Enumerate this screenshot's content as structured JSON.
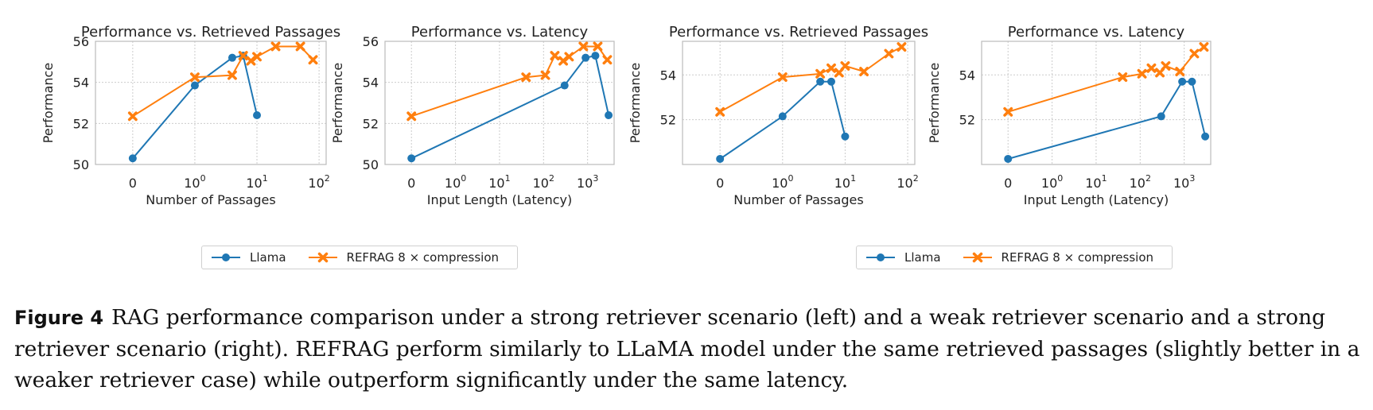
{
  "colors": {
    "llama": "#1f77b4",
    "refrag": "#ff7f0e",
    "grid": "#cccccc",
    "axis": "#bbbbbb",
    "text": "#222222"
  },
  "chart_data": [
    {
      "type": "line",
      "title": "Performance vs. Retrieved Passages",
      "xlabel": "Number of Passages",
      "ylabel": "Performance",
      "xscale": "symlog",
      "xlim": [
        -0.6,
        130
      ],
      "ylim": [
        50,
        56
      ],
      "xticks": [
        {
          "v": 0,
          "label": "0"
        },
        {
          "v": 1,
          "base": "10",
          "exp": "0"
        },
        {
          "v": 10,
          "base": "10",
          "exp": "1"
        },
        {
          "v": 100,
          "base": "10",
          "exp": "2"
        }
      ],
      "yticks": [
        {
          "v": 50,
          "label": "50"
        },
        {
          "v": 52,
          "label": "52"
        },
        {
          "v": 54,
          "label": "54"
        },
        {
          "v": 56,
          "label": "56"
        }
      ],
      "series": [
        {
          "name": "Llama",
          "marker": "circle",
          "x": [
            0,
            1,
            4,
            6,
            10
          ],
          "y": [
            50.3,
            53.85,
            55.2,
            55.3,
            52.4
          ]
        },
        {
          "name": "REFRAG 8× compression",
          "marker": "x",
          "x": [
            0,
            1,
            4,
            6,
            8,
            10,
            20,
            50,
            80
          ],
          "y": [
            52.35,
            54.25,
            54.35,
            55.3,
            55.05,
            55.25,
            55.75,
            55.75,
            55.1
          ]
        }
      ]
    },
    {
      "type": "line",
      "title": "Performance vs. Latency",
      "xlabel": "Input Length (Latency)",
      "ylabel": "Performance",
      "xscale": "symlog",
      "xlim": [
        -0.6,
        4000
      ],
      "ylim": [
        50,
        56
      ],
      "xticks": [
        {
          "v": 0,
          "label": "0"
        },
        {
          "v": 1,
          "base": "10",
          "exp": "0"
        },
        {
          "v": 10,
          "base": "10",
          "exp": "1"
        },
        {
          "v": 100,
          "base": "10",
          "exp": "2"
        },
        {
          "v": 1000,
          "base": "10",
          "exp": "3"
        }
      ],
      "yticks": [
        {
          "v": 50,
          "label": "50"
        },
        {
          "v": 52,
          "label": "52"
        },
        {
          "v": 54,
          "label": "54"
        },
        {
          "v": 56,
          "label": "56"
        }
      ],
      "series": [
        {
          "name": "Llama",
          "marker": "circle",
          "x": [
            0,
            300,
            900,
            1500,
            3000
          ],
          "y": [
            50.3,
            53.85,
            55.2,
            55.3,
            52.4
          ]
        },
        {
          "name": "REFRAG 8× compression",
          "marker": "x",
          "x": [
            0,
            40,
            110,
            180,
            280,
            380,
            800,
            1700,
            2800
          ],
          "y": [
            52.35,
            54.25,
            54.35,
            55.3,
            55.05,
            55.25,
            55.75,
            55.75,
            55.1
          ]
        }
      ]
    },
    {
      "type": "line",
      "title": "Performance vs. Retrieved Passages",
      "xlabel": "Number of Passages",
      "ylabel": "Performance",
      "xscale": "symlog",
      "xlim": [
        -0.6,
        130
      ],
      "ylim": [
        50,
        55.5
      ],
      "xticks": [
        {
          "v": 0,
          "label": "0"
        },
        {
          "v": 1,
          "base": "10",
          "exp": "0"
        },
        {
          "v": 10,
          "base": "10",
          "exp": "1"
        },
        {
          "v": 100,
          "base": "10",
          "exp": "2"
        }
      ],
      "yticks": [
        {
          "v": 52,
          "label": "52"
        },
        {
          "v": 54,
          "label": "54"
        }
      ],
      "series": [
        {
          "name": "Llama",
          "marker": "circle",
          "x": [
            0,
            1,
            4,
            6,
            10
          ],
          "y": [
            50.25,
            52.15,
            53.7,
            53.7,
            51.25
          ]
        },
        {
          "name": "REFRAG 8× compression",
          "marker": "x",
          "x": [
            0,
            1,
            4,
            6,
            8,
            10,
            20,
            50,
            80
          ],
          "y": [
            52.35,
            53.9,
            54.05,
            54.3,
            54.1,
            54.4,
            54.15,
            54.95,
            55.25
          ]
        }
      ]
    },
    {
      "type": "line",
      "title": "Performance vs. Latency",
      "xlabel": "Input Length (Latency)",
      "ylabel": "Performance",
      "xscale": "symlog",
      "xlim": [
        -0.6,
        4000
      ],
      "ylim": [
        50,
        55.5
      ],
      "xticks": [
        {
          "v": 0,
          "label": "0"
        },
        {
          "v": 1,
          "base": "10",
          "exp": "0"
        },
        {
          "v": 10,
          "base": "10",
          "exp": "1"
        },
        {
          "v": 100,
          "base": "10",
          "exp": "2"
        },
        {
          "v": 1000,
          "base": "10",
          "exp": "3"
        }
      ],
      "yticks": [
        {
          "v": 52,
          "label": "52"
        },
        {
          "v": 54,
          "label": "54"
        }
      ],
      "series": [
        {
          "name": "Llama",
          "marker": "circle",
          "x": [
            0,
            300,
            900,
            1500,
            3000
          ],
          "y": [
            50.25,
            52.15,
            53.7,
            53.7,
            51.25
          ]
        },
        {
          "name": "REFRAG 8× compression",
          "marker": "x",
          "x": [
            0,
            40,
            110,
            180,
            280,
            380,
            800,
            1700,
            2800
          ],
          "y": [
            52.35,
            53.9,
            54.05,
            54.3,
            54.1,
            54.4,
            54.15,
            54.95,
            55.25
          ]
        }
      ]
    }
  ],
  "legend": {
    "llama_label": "Llama",
    "refrag_label": "REFRAG 8 × compression"
  },
  "caption": {
    "label": "Figure 4",
    "text": "RAG performance comparison under a strong retriever scenario (left) and a weak retriever scenario and a strong retriever scenario (right). REFRAG perform similarly to LLaMA model under the same retrieved passages (slightly better in a weaker retriever case) while outperform significantly under the same latency."
  }
}
